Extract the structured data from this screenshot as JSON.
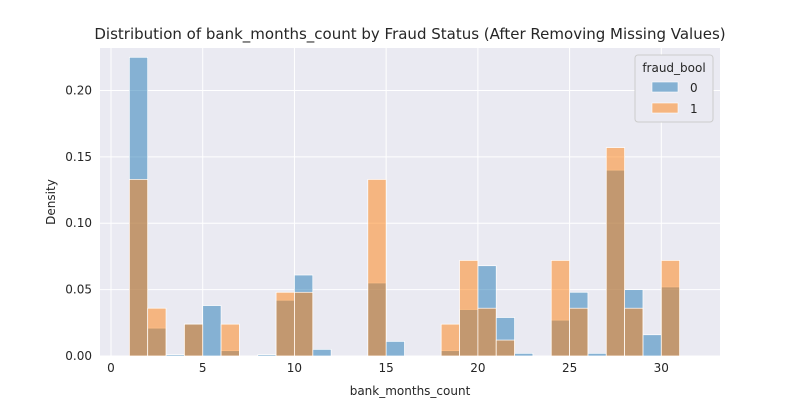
{
  "chart_data": {
    "type": "bar",
    "title": "Distribution of bank_months_count by Fraud Status (After Removing Missing Values)",
    "xlabel": "bank_months_count",
    "ylabel": "Density",
    "xlim": [
      -0.6,
      33.2
    ],
    "ylim": [
      0,
      0.232
    ],
    "xticks": [
      0,
      5,
      10,
      15,
      20,
      25,
      30
    ],
    "yticks": [
      0.0,
      0.05,
      0.1,
      0.15,
      0.2
    ],
    "ytick_labels": [
      "0.00",
      "0.05",
      "0.10",
      "0.15",
      "0.20"
    ],
    "grid": true,
    "bin_edges": [
      1,
      2,
      3,
      4,
      5,
      6,
      7,
      8,
      9,
      10,
      11,
      12,
      13,
      14,
      15,
      16,
      17,
      18,
      19,
      20,
      21,
      22,
      23,
      24,
      25,
      26,
      27,
      28,
      29,
      30,
      31,
      32
    ],
    "legend": {
      "title": "fraud_bool",
      "placement": "top-right"
    },
    "series": [
      {
        "name": "0",
        "color": "#1f77b4",
        "values": [
          0.225,
          0.021,
          0.001,
          0.024,
          0.038,
          0.004,
          0.0,
          0.001,
          0.042,
          0.061,
          0.005,
          0.0,
          0.0,
          0.055,
          0.011,
          0.0,
          0.0,
          0.004,
          0.035,
          0.068,
          0.029,
          0.002,
          0.0,
          0.027,
          0.048,
          0.002,
          0.14,
          0.05,
          0.016,
          0.052,
          0.0
        ]
      },
      {
        "name": "1",
        "color": "#ff7f0e",
        "values": [
          0.133,
          0.036,
          0.0,
          0.024,
          0.0,
          0.024,
          0.0,
          0.0,
          0.048,
          0.048,
          0.0,
          0.0,
          0.0,
          0.133,
          0.0,
          0.0,
          0.0,
          0.024,
          0.072,
          0.036,
          0.012,
          0.0,
          0.0,
          0.072,
          0.036,
          0.0,
          0.157,
          0.036,
          0.0,
          0.072,
          0.0
        ]
      }
    ]
  }
}
